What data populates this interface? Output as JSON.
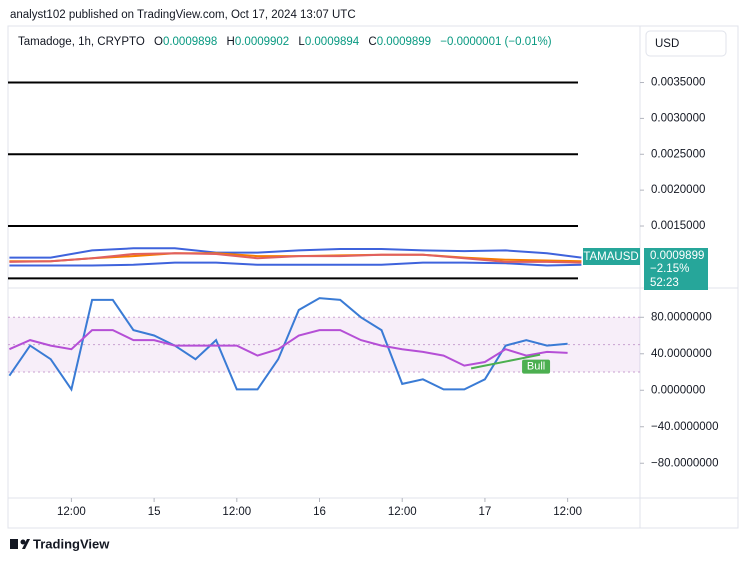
{
  "header": {
    "text": "analyst102 published on TradingView.com, Oct 17, 2024 13:07 UTC"
  },
  "legend": {
    "symbol": "Tamadoge, 1h, CRYPTO",
    "o_label": "O",
    "o": "0.0009898",
    "h_label": "H",
    "h": "0.0009902",
    "l_label": "L",
    "l": "0.0009894",
    "c_label": "C",
    "c": "0.0009899",
    "change": "−0.0000001 (−0.01%)"
  },
  "currency": "USD",
  "price_tag": {
    "symbol": "TAMAUSD",
    "price": "0.0009899",
    "change": "−2.15%",
    "countdown": "52:23"
  },
  "footer": "TradingView",
  "chart_data": [
    {
      "type": "line",
      "x": [
        -9,
        -3,
        3,
        9,
        15,
        21,
        27,
        33,
        39,
        45,
        51,
        57,
        63,
        69,
        74
      ],
      "xlim": [
        -9.2,
        82.5
      ],
      "ylim": [
        0.00065,
        0.00426
      ],
      "yticks": [
        {
          "value": 0.0015,
          "label": "0.0015000"
        },
        {
          "value": 0.002,
          "label": "0.0020000"
        },
        {
          "value": 0.0025,
          "label": "0.0025000"
        },
        {
          "value": 0.003,
          "label": "0.0030000"
        },
        {
          "value": 0.0035,
          "label": "0.0035000"
        }
      ],
      "levels": [
        0.0035,
        0.0025,
        0.0015,
        0.00077
      ],
      "series": [
        {
          "color": "#3f63dc",
          "values": [
            0.00106,
            0.00106,
            0.00116,
            0.00119,
            0.00119,
            0.00113,
            0.00113,
            0.00116,
            0.00118,
            0.00118,
            0.00116,
            0.00115,
            0.00116,
            0.00112,
            0.00106
          ]
        },
        {
          "color": "#f57c00",
          "values": [
            0.00101,
            0.00101,
            0.00105,
            0.00108,
            0.00112,
            0.00112,
            0.00108,
            0.00108,
            0.00109,
            0.0011,
            0.0011,
            0.00106,
            0.00103,
            0.00102,
            0.00101
          ]
        },
        {
          "color": "#3f63dc",
          "values": [
            0.00095,
            0.00095,
            0.00095,
            0.00096,
            0.00099,
            0.00099,
            0.00096,
            0.00096,
            0.00096,
            0.00096,
            0.00099,
            0.00099,
            0.00098,
            0.00095,
            0.00096
          ]
        },
        {
          "color": "#e06060",
          "values": [
            0.001,
            0.00101,
            0.00105,
            0.00111,
            0.00112,
            0.00111,
            0.00105,
            0.00108,
            0.00108,
            0.0011,
            0.0011,
            0.00105,
            0.001,
            0.001,
            0.00099
          ]
        }
      ]
    },
    {
      "type": "line",
      "x": [
        -9,
        -6,
        -3,
        0,
        3,
        6,
        9,
        12,
        15,
        18,
        21,
        24,
        27,
        30,
        33,
        36,
        39,
        42,
        45,
        48,
        51,
        54,
        57,
        60,
        63,
        66,
        69,
        72
      ],
      "xlim": [
        -9.2,
        82.5
      ],
      "xticks": [
        {
          "value": 0,
          "label": "12:00"
        },
        {
          "value": 12,
          "label": "15"
        },
        {
          "value": 24,
          "label": "12:00"
        },
        {
          "value": 36,
          "label": "16"
        },
        {
          "value": 48,
          "label": "12:00"
        },
        {
          "value": 60,
          "label": "17"
        },
        {
          "value": 72,
          "label": "12:00"
        }
      ],
      "ylim": [
        -117,
        111
      ],
      "yticks": [
        {
          "value": -80,
          "label": "−80.0000000"
        },
        {
          "value": -40,
          "label": "−40.0000000"
        },
        {
          "value": 0,
          "label": "0.0000000"
        },
        {
          "value": 40,
          "label": "40.0000000"
        },
        {
          "value": 80,
          "label": "80.0000000"
        }
      ],
      "band": [
        20,
        80
      ],
      "midline": 50,
      "series": [
        {
          "color": "#3a7bd5",
          "values": [
            16,
            49,
            34,
            1,
            99,
            99,
            66,
            60,
            49,
            34,
            55,
            1,
            1,
            34,
            88,
            101,
            99,
            80,
            66,
            7,
            12,
            1,
            1,
            12,
            49,
            55,
            49,
            51
          ]
        },
        {
          "color": "#b54fd6",
          "values": [
            45,
            55,
            49,
            45,
            66,
            66,
            55,
            55,
            49,
            49,
            49,
            49,
            38,
            45,
            60,
            66,
            66,
            55,
            49,
            45,
            42,
            38,
            27,
            31,
            45,
            38,
            42,
            41
          ]
        }
      ],
      "signal": {
        "x": [
          58,
          68
        ],
        "values": [
          24,
          39
        ],
        "color": "#4caf50",
        "label": "Bull"
      }
    }
  ]
}
